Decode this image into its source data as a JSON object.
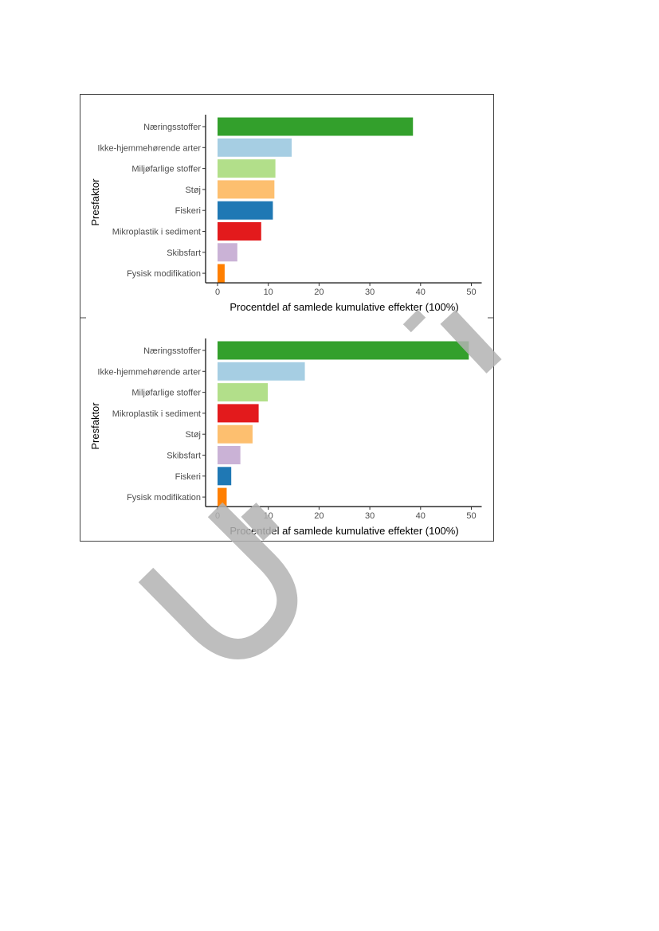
{
  "chart_data": [
    {
      "type": "bar",
      "orientation": "horizontal",
      "title": "",
      "xlabel": "Procentdel af samlede kumulative effekter (100%)",
      "ylabel": "Presfaktor",
      "xlim": [
        0,
        50
      ],
      "xticks": [
        "0",
        "10",
        "20",
        "30",
        "40",
        "50"
      ],
      "grid": false,
      "categories": [
        "Næringsstoffer",
        "Ikke-hjemmehørende arter",
        "Miljøfarlige stoffer",
        "Støj",
        "Fiskeri",
        "Mikroplastik i sediment",
        "Skibsfart",
        "Fysisk modifikation"
      ],
      "values": [
        38.5,
        14.6,
        11.4,
        11.2,
        10.9,
        8.6,
        3.9,
        1.4
      ],
      "colors": [
        "#33a02c",
        "#a6cee3",
        "#b2df8a",
        "#fdbf6f",
        "#1f78b4",
        "#e31a1c",
        "#cab2d6",
        "#ff7f00"
      ]
    },
    {
      "type": "bar",
      "orientation": "horizontal",
      "title": "",
      "xlabel": "Procentdel af samlede kumulative effekter (100%)",
      "ylabel": "Presfaktor",
      "xlim": [
        0,
        50
      ],
      "xticks": [
        "0",
        "10",
        "20",
        "30",
        "40",
        "50"
      ],
      "grid": false,
      "categories": [
        "Næringsstoffer",
        "Ikke-hjemmehørende arter",
        "Miljøfarlige stoffer",
        "Mikroplastik i sediment",
        "Støj",
        "Skibsfart",
        "Fiskeri",
        "Fysisk modifikation"
      ],
      "values": [
        49.5,
        17.2,
        9.9,
        8.1,
        6.9,
        4.5,
        2.7,
        1.8
      ],
      "colors": [
        "#33a02c",
        "#a6cee3",
        "#b2df8a",
        "#e31a1c",
        "#fdbf6f",
        "#cab2d6",
        "#1f78b4",
        "#ff7f00"
      ]
    }
  ]
}
